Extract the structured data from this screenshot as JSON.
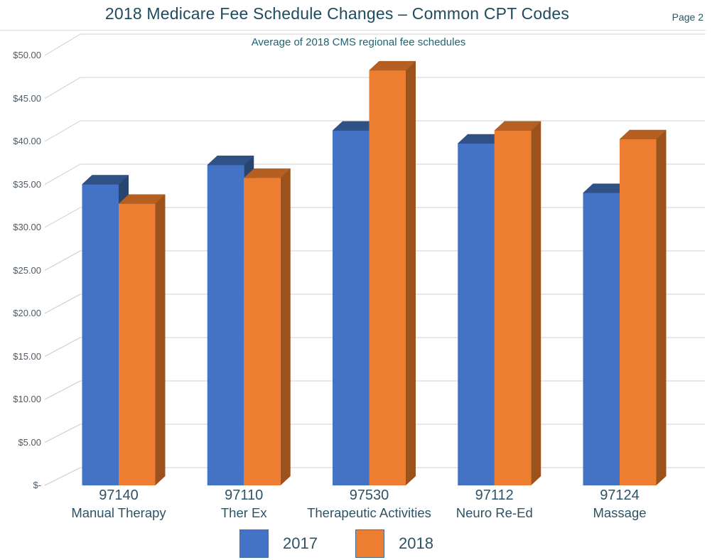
{
  "header": {
    "title": "2018 Medicare Fee Schedule Changes – Common CPT Codes",
    "page": "Page 2",
    "subtitle": "Average of 2018 CMS regional fee schedules"
  },
  "chart_data": {
    "type": "bar",
    "style": "3d-clustered-column",
    "title": "2018 Medicare Fee Schedule Changes – Common CPT Codes",
    "subtitle": "Average of 2018 CMS regional fee schedules",
    "categories": [
      {
        "code": "97140",
        "name": "Manual Therapy"
      },
      {
        "code": "97110",
        "name": "Ther Ex"
      },
      {
        "code": "97530",
        "name": "Therapeutic Activities"
      },
      {
        "code": "97112",
        "name": "Neuro Re-Ed"
      },
      {
        "code": "97124",
        "name": "Massage"
      }
    ],
    "series": [
      {
        "name": "2017",
        "color": "#4472C4",
        "color_top": "#2F5186",
        "color_side": "#27456F",
        "values": [
          35.0,
          37.25,
          41.25,
          39.75,
          34.0
        ]
      },
      {
        "name": "2018",
        "color": "#ED7D31",
        "color_top": "#B55F21",
        "color_side": "#9C521C",
        "values": [
          32.75,
          35.75,
          48.25,
          41.25,
          40.25
        ]
      }
    ],
    "xlabel": "",
    "ylabel": "",
    "ylim": [
      0,
      50
    ],
    "grid": true,
    "legend_position": "bottom",
    "y_ticks": [
      {
        "value": 0,
        "label": "$-"
      },
      {
        "value": 5,
        "label": "$5.00"
      },
      {
        "value": 10,
        "label": "$10.00"
      },
      {
        "value": 15,
        "label": "$15.00"
      },
      {
        "value": 20,
        "label": "$20.00"
      },
      {
        "value": 25,
        "label": "$25.00"
      },
      {
        "value": 30,
        "label": "$30.00"
      },
      {
        "value": 35,
        "label": "$35.00"
      },
      {
        "value": 40,
        "label": "$40.00"
      },
      {
        "value": 45,
        "label": "$45.00"
      },
      {
        "value": 50,
        "label": "$50.00"
      }
    ]
  },
  "colors": {
    "title_text": "#1E4B5F",
    "subtitle_text": "#1F6373",
    "page_text": "#2E5566",
    "axis_text": "#4F5A64",
    "category_text": "#2E5266",
    "gridline": "#D9D9D9",
    "tick_connector": "#C9CDD2",
    "divider": "#DBDBDB",
    "legend_border": "#41719C"
  }
}
